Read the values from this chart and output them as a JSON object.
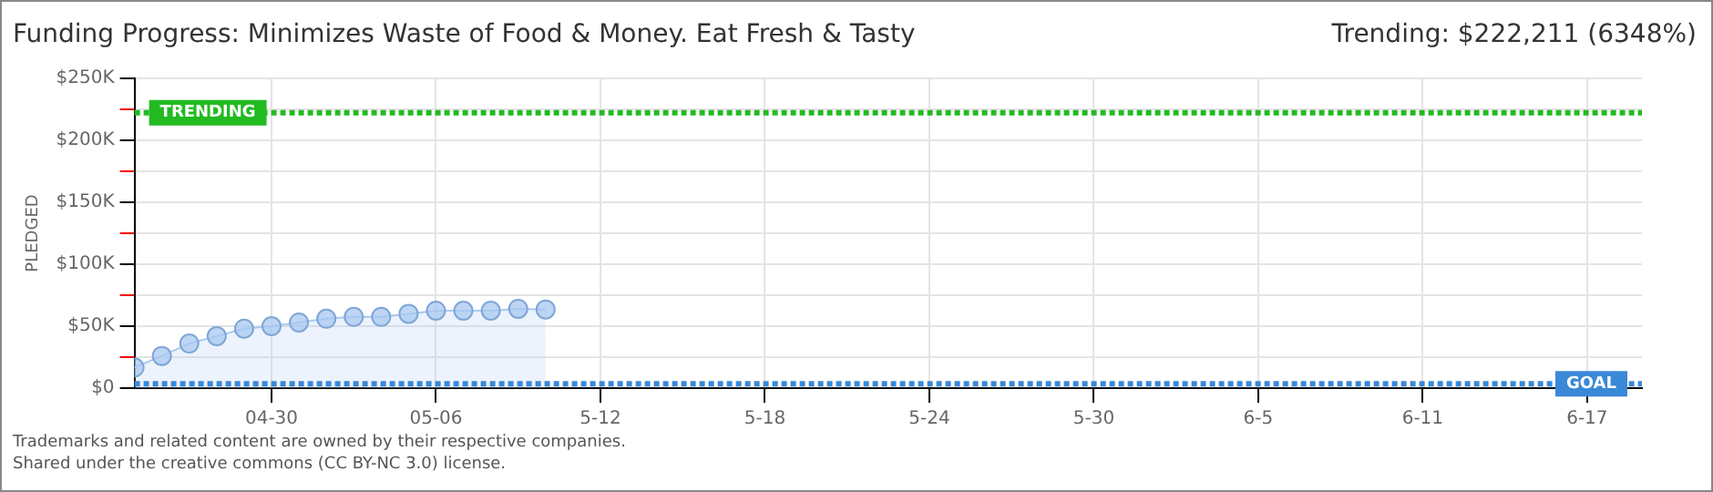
{
  "chart_data": {
    "type": "area",
    "title": "Funding Progress: Minimizes Waste of Food & Money. Eat Fresh & Tasty",
    "ylabel": "PLEDGED",
    "x": [
      "--04-25",
      "--04-26",
      "--04-27",
      "--04-28",
      "--04-29",
      "--04-30",
      "--05-01",
      "--05-02",
      "--05-03",
      "--05-04",
      "--05-05",
      "--05-06",
      "--05-07",
      "--05-08",
      "--05-09",
      "--05-10"
    ],
    "series": [
      {
        "color": "#a8c8f0",
        "values": [
          16700,
          26000,
          36000,
          42000,
          48000,
          50000,
          53000,
          56000,
          57500,
          57500,
          60000,
          62500,
          62500,
          62500,
          64000,
          63500
        ]
      }
    ],
    "marker": "circle",
    "xlim": [
      "--04-25",
      "--06-19"
    ],
    "xticks": [
      {
        "value": "--04-30",
        "label": "04-30"
      },
      {
        "value": "--05-06",
        "label": "05-06"
      },
      {
        "value": "--05-12",
        "label": "5-12"
      },
      {
        "value": "--05-18",
        "label": "5-18"
      },
      {
        "value": "--05-24",
        "label": "5-24"
      },
      {
        "value": "--05-30",
        "label": "5-30"
      },
      {
        "value": "--06-05",
        "label": "6-5"
      },
      {
        "value": "--06-11",
        "label": "6-11"
      },
      {
        "value": "--06-17",
        "label": "6-17"
      }
    ],
    "ylim": [
      0,
      250000
    ],
    "yticks": [
      {
        "value": 0,
        "label": "$0"
      },
      {
        "value": 25000,
        "label": null
      },
      {
        "value": 50000,
        "label": "$50K"
      },
      {
        "value": 75000,
        "label": null
      },
      {
        "value": 100000,
        "label": "$100K"
      },
      {
        "value": 125000,
        "label": null
      },
      {
        "value": 150000,
        "label": "$150K"
      },
      {
        "value": 175000,
        "label": null
      },
      {
        "value": 200000,
        "label": "$200K"
      },
      {
        "value": 225000,
        "label": null
      },
      {
        "value": 250000,
        "label": "$250K"
      }
    ],
    "grid": true,
    "ref_lines": [
      {
        "axis": "y",
        "value": 222211,
        "label": "TRENDING",
        "color": "#22bb22",
        "line_style": "dotted"
      },
      {
        "axis": "y",
        "value": 3500,
        "label": "GOAL",
        "color": "#3a88d8",
        "line_style": "dotted"
      }
    ],
    "annotations": [
      "Trending: $222,211 (6348%)",
      "Trademarks and related content are owned by their respective companies.",
      "Shared under the creative commons (CC BY-NC 3.0) license."
    ]
  }
}
